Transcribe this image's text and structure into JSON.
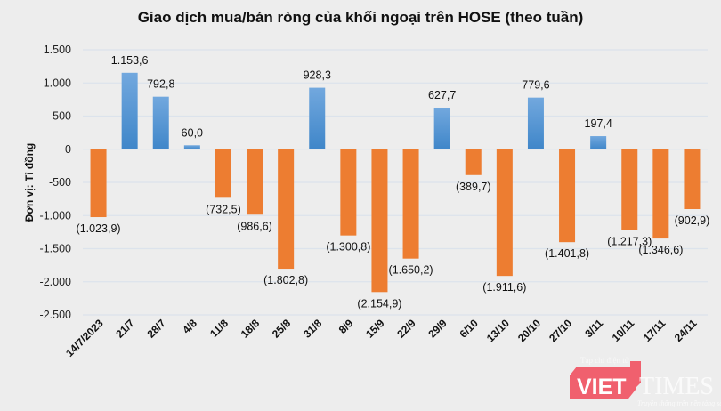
{
  "chart_data": {
    "type": "bar",
    "title": "Giao dịch mua/bán ròng của khối ngoại trên HOSE (theo tuần)",
    "ylabel": "Đơn vị: Tỉ đồng",
    "xlabel": "",
    "ylim": [
      -2500,
      1500
    ],
    "yticks": [
      1500,
      1000,
      500,
      0,
      -500,
      -1000,
      -1500,
      -2000,
      -2500
    ],
    "ytick_labels": [
      "1.500",
      "1.000",
      "500",
      "0",
      "-500",
      "-1.000",
      "-1.500",
      "-2.000",
      "-2.500"
    ],
    "grid": true,
    "categories": [
      "14/7/2023",
      "21/7",
      "28/7",
      "4/8",
      "11/8",
      "18/8",
      "25/8",
      "31/8",
      "8/9",
      "15/9",
      "22/9",
      "29/9",
      "6/10",
      "13/10",
      "20/10",
      "27/10",
      "3/11",
      "10/11",
      "17/11",
      "24/11"
    ],
    "values": [
      -1023.9,
      1153.6,
      792.8,
      60.0,
      -732.5,
      -986.6,
      -1802.8,
      928.3,
      -1300.8,
      -2154.9,
      -1650.2,
      627.7,
      -389.7,
      -1911.6,
      779.6,
      -1401.8,
      197.4,
      -1217.3,
      -1346.6,
      -902.9
    ],
    "data_labels": [
      "(1.023,9)",
      "1.153,6",
      "792,8",
      "60,0",
      "(732,5)",
      "(986,6)",
      "(1.802,8)",
      "928,3",
      "(1.300,8)",
      "(2.154,9)",
      "(1.650,2)",
      "627,7",
      "(389,7)",
      "(1.911,6)",
      "779,6",
      "(1.401,8)",
      "197,4",
      "(1.217,3)",
      "(1.346,6)",
      "(902,9)"
    ],
    "colors": {
      "positive": "#5b9bd5",
      "negative": "#ed7d31",
      "grid": "#dce3ec"
    }
  },
  "watermark": {
    "brand": "VIET",
    "brand2": "TIMES",
    "tagline_top": "Tạp chí điện tử",
    "tagline_bottom": "Truyền thông trên nền tảng số",
    "color": "#f0606e"
  }
}
